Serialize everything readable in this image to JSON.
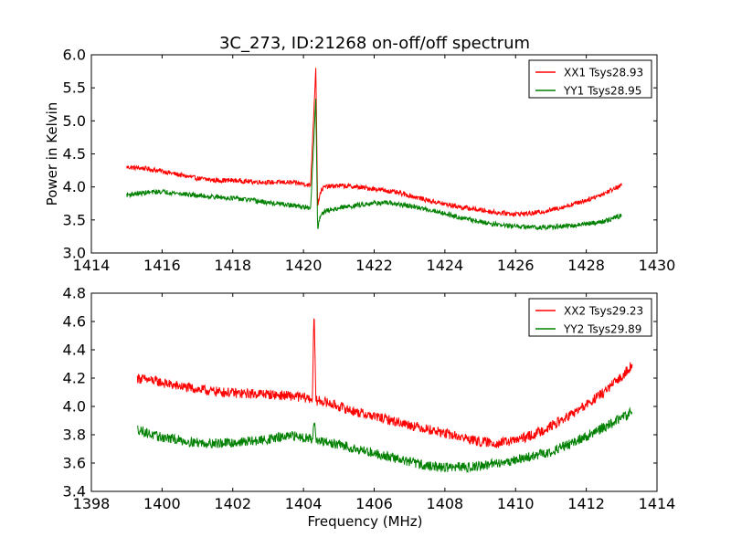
{
  "figure": {
    "title": "3C_273, ID:21268 on-off/off spectrum"
  },
  "chart_data": [
    {
      "type": "line",
      "title": "3C_273, ID:21268 on-off/off spectrum",
      "xlabel": "",
      "ylabel": "Power in Kelvin",
      "xlim": [
        1414,
        1430
      ],
      "ylim": [
        3.0,
        6.0
      ],
      "xticks": [
        1414,
        1416,
        1418,
        1420,
        1422,
        1424,
        1426,
        1428,
        1430
      ],
      "xtick_labels": [
        "1414",
        "1416",
        "1418",
        "1420",
        "1422",
        "1424",
        "1426",
        "1428",
        "1430"
      ],
      "yticks": [
        3.0,
        3.5,
        4.0,
        4.5,
        5.0,
        5.5,
        6.0
      ],
      "ytick_labels": [
        "3.0",
        "3.5",
        "4.0",
        "4.5",
        "5.0",
        "5.5",
        "6.0"
      ],
      "legend_position": "top-right",
      "series": [
        {
          "name": "XX1 Tsys28.93",
          "color": "#ff0000",
          "x": [
            1415.0,
            1415.5,
            1416.0,
            1416.5,
            1417.0,
            1417.5,
            1418.0,
            1418.5,
            1419.0,
            1419.5,
            1420.0,
            1420.2,
            1420.35,
            1420.4,
            1420.45,
            1420.5,
            1420.6,
            1421.0,
            1421.5,
            1422.0,
            1422.5,
            1423.0,
            1423.5,
            1424.0,
            1424.5,
            1425.0,
            1425.5,
            1426.0,
            1426.5,
            1427.0,
            1427.5,
            1428.0,
            1428.5,
            1429.0
          ],
          "y": [
            4.3,
            4.28,
            4.24,
            4.18,
            4.13,
            4.1,
            4.1,
            4.08,
            4.07,
            4.07,
            4.05,
            4.02,
            5.82,
            3.72,
            3.85,
            3.95,
            4.0,
            4.02,
            4.0,
            3.97,
            3.93,
            3.87,
            3.8,
            3.74,
            3.69,
            3.65,
            3.61,
            3.59,
            3.6,
            3.65,
            3.72,
            3.8,
            3.9,
            4.03
          ]
        },
        {
          "name": "YY1 Tsys28.95",
          "color": "#008000",
          "x": [
            1415.0,
            1415.5,
            1416.0,
            1416.5,
            1417.0,
            1417.5,
            1418.0,
            1418.5,
            1419.0,
            1419.5,
            1420.0,
            1420.2,
            1420.35,
            1420.4,
            1420.45,
            1420.5,
            1420.6,
            1421.0,
            1421.5,
            1422.0,
            1422.5,
            1423.0,
            1423.5,
            1424.0,
            1424.5,
            1425.0,
            1425.5,
            1426.0,
            1426.5,
            1427.0,
            1427.5,
            1428.0,
            1428.5,
            1429.0
          ],
          "y": [
            3.88,
            3.91,
            3.93,
            3.9,
            3.87,
            3.85,
            3.83,
            3.8,
            3.76,
            3.73,
            3.7,
            3.66,
            5.35,
            3.35,
            3.5,
            3.6,
            3.63,
            3.68,
            3.72,
            3.76,
            3.75,
            3.71,
            3.66,
            3.6,
            3.53,
            3.47,
            3.43,
            3.4,
            3.39,
            3.39,
            3.41,
            3.44,
            3.48,
            3.57
          ]
        }
      ]
    },
    {
      "type": "line",
      "title": "",
      "xlabel": "Frequency (MHz)",
      "ylabel": "",
      "xlim": [
        1398,
        1414
      ],
      "ylim": [
        3.4,
        4.8
      ],
      "xticks": [
        1398,
        1400,
        1402,
        1404,
        1406,
        1408,
        1410,
        1412,
        1414
      ],
      "xtick_labels": [
        "1398",
        "1400",
        "1402",
        "1404",
        "1406",
        "1408",
        "1410",
        "1412",
        "1414"
      ],
      "yticks": [
        3.4,
        3.6,
        3.8,
        4.0,
        4.2,
        4.4,
        4.6,
        4.8
      ],
      "ytick_labels": [
        "3.4",
        "3.6",
        "3.8",
        "4.0",
        "4.2",
        "4.4",
        "4.6",
        "4.8"
      ],
      "legend_position": "top-right",
      "series": [
        {
          "name": "XX2 Tsys29.23",
          "color": "#ff0000",
          "x": [
            1399.3,
            1399.8,
            1400.3,
            1400.8,
            1401.3,
            1401.8,
            1402.3,
            1402.8,
            1403.3,
            1403.8,
            1404.1,
            1404.25,
            1404.3,
            1404.35,
            1404.5,
            1405.0,
            1405.5,
            1406.0,
            1406.5,
            1407.0,
            1407.5,
            1408.0,
            1408.5,
            1409.0,
            1409.5,
            1410.0,
            1410.5,
            1411.0,
            1411.5,
            1412.0,
            1412.5,
            1413.0,
            1413.3
          ],
          "y": [
            4.2,
            4.18,
            4.15,
            4.13,
            4.11,
            4.1,
            4.09,
            4.09,
            4.08,
            4.07,
            4.06,
            4.05,
            4.69,
            4.04,
            4.04,
            4.0,
            3.96,
            3.93,
            3.9,
            3.87,
            3.84,
            3.81,
            3.78,
            3.75,
            3.74,
            3.76,
            3.8,
            3.86,
            3.93,
            4.01,
            4.1,
            4.21,
            4.3
          ]
        },
        {
          "name": "YY2 Tsys29.89",
          "color": "#008000",
          "x": [
            1399.3,
            1399.8,
            1400.3,
            1400.8,
            1401.3,
            1401.8,
            1402.3,
            1402.8,
            1403.3,
            1403.8,
            1404.1,
            1404.25,
            1404.3,
            1404.35,
            1404.5,
            1405.0,
            1405.5,
            1406.0,
            1406.5,
            1407.0,
            1407.5,
            1408.0,
            1408.5,
            1409.0,
            1409.5,
            1410.0,
            1410.5,
            1411.0,
            1411.5,
            1412.0,
            1412.5,
            1413.0,
            1413.3
          ],
          "y": [
            3.84,
            3.79,
            3.77,
            3.75,
            3.74,
            3.74,
            3.75,
            3.76,
            3.78,
            3.79,
            3.78,
            3.77,
            3.92,
            3.76,
            3.75,
            3.73,
            3.7,
            3.67,
            3.64,
            3.61,
            3.58,
            3.57,
            3.57,
            3.58,
            3.6,
            3.62,
            3.65,
            3.68,
            3.73,
            3.79,
            3.85,
            3.92,
            3.96
          ]
        }
      ]
    }
  ]
}
